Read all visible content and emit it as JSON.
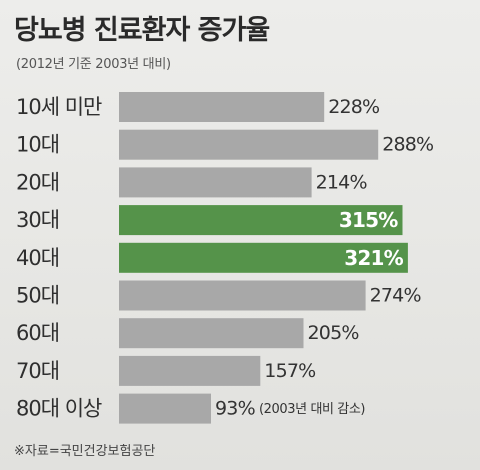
{
  "title": "당뇨병 진료환자 증가율",
  "subtitle": "(2012년 기준 2003년 대비)",
  "source": "※자료=국민건강보험공단",
  "colors": {
    "bar": "#a8a8a8",
    "highlight": "#55934a",
    "text": "#333333"
  },
  "chart_data": {
    "type": "bar",
    "orientation": "horizontal",
    "categories": [
      "10세 미만",
      "10대",
      "20대",
      "30대",
      "40대",
      "50대",
      "60대",
      "70대",
      "80대 이상"
    ],
    "values": [
      228,
      288,
      214,
      315,
      321,
      274,
      205,
      157,
      -93
    ],
    "value_labels": [
      "228%",
      "288%",
      "214%",
      "315%",
      "321%",
      "274%",
      "205%",
      "157%",
      "93%"
    ],
    "highlighted": [
      false,
      false,
      false,
      true,
      true,
      false,
      false,
      false,
      false
    ],
    "annotations": [
      "",
      "",
      "",
      "",
      "",
      "",
      "",
      "",
      "(2003년 대비 감소)"
    ],
    "unit": "%",
    "grid": false,
    "legend": "none"
  }
}
